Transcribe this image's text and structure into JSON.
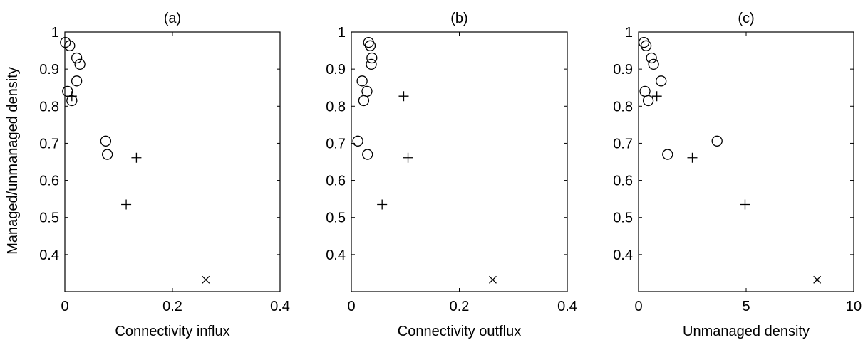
{
  "figure": {
    "ylabel": "Managed/unmanaged density",
    "marker_color": "#000000"
  },
  "chart_data": [
    {
      "type": "scatter",
      "title": "(a)",
      "xlabel": "Connectivity influx",
      "xlim": [
        0,
        0.4
      ],
      "ylim": [
        0.3,
        1.0
      ],
      "xticks": [
        0,
        0.2,
        0.4
      ],
      "xtick_labels": [
        "0",
        "0.2",
        "0.4"
      ],
      "yticks": [
        0.4,
        0.5,
        0.6,
        0.7,
        0.8,
        0.9,
        1.0
      ],
      "ytick_labels": [
        "0.4",
        "0.5",
        "0.6",
        "0.7",
        "0.8",
        "0.9",
        "1"
      ],
      "series": [
        {
          "marker": "circle",
          "points": [
            [
              0.001,
              0.972
            ],
            [
              0.009,
              0.963
            ],
            [
              0.022,
              0.93
            ],
            [
              0.028,
              0.913
            ],
            [
              0.022,
              0.868
            ],
            [
              0.005,
              0.84
            ],
            [
              0.013,
              0.815
            ],
            [
              0.076,
              0.706
            ],
            [
              0.079,
              0.67
            ]
          ]
        },
        {
          "marker": "plus",
          "points": [
            [
              0.013,
              0.827
            ],
            [
              0.133,
              0.661
            ],
            [
              0.114,
              0.535
            ]
          ]
        },
        {
          "marker": "x",
          "points": [
            [
              0.262,
              0.332
            ]
          ]
        }
      ]
    },
    {
      "type": "scatter",
      "title": "(b)",
      "xlabel": "Connectivity outflux",
      "xlim": [
        0,
        0.4
      ],
      "ylim": [
        0.3,
        1.0
      ],
      "xticks": [
        0,
        0.2,
        0.4
      ],
      "xtick_labels": [
        "0",
        "0.2",
        "0.4"
      ],
      "yticks": [
        0.4,
        0.5,
        0.6,
        0.7,
        0.8,
        0.9,
        1.0
      ],
      "ytick_labels": [
        "0.4",
        "0.5",
        "0.6",
        "0.7",
        "0.8",
        "0.9",
        "1"
      ],
      "series": [
        {
          "marker": "circle",
          "points": [
            [
              0.032,
              0.972
            ],
            [
              0.035,
              0.963
            ],
            [
              0.038,
              0.93
            ],
            [
              0.037,
              0.913
            ],
            [
              0.02,
              0.868
            ],
            [
              0.029,
              0.84
            ],
            [
              0.023,
              0.815
            ],
            [
              0.012,
              0.706
            ],
            [
              0.03,
              0.67
            ]
          ]
        },
        {
          "marker": "plus",
          "points": [
            [
              0.097,
              0.827
            ],
            [
              0.105,
              0.661
            ],
            [
              0.057,
              0.535
            ]
          ]
        },
        {
          "marker": "x",
          "points": [
            [
              0.262,
              0.332
            ]
          ]
        }
      ]
    },
    {
      "type": "scatter",
      "title": "(c)",
      "xlabel": "Unmanaged density",
      "xlim": [
        0,
        10
      ],
      "ylim": [
        0.3,
        1.0
      ],
      "xticks": [
        0,
        5,
        10
      ],
      "xtick_labels": [
        "0",
        "5",
        "10"
      ],
      "yticks": [
        0.4,
        0.5,
        0.6,
        0.7,
        0.8,
        0.9,
        1.0
      ],
      "ytick_labels": [
        "0.4",
        "0.5",
        "0.6",
        "0.7",
        "0.8",
        "0.9",
        "1"
      ],
      "series": [
        {
          "marker": "circle",
          "points": [
            [
              0.25,
              0.972
            ],
            [
              0.35,
              0.963
            ],
            [
              0.6,
              0.93
            ],
            [
              0.7,
              0.913
            ],
            [
              1.05,
              0.868
            ],
            [
              0.3,
              0.84
            ],
            [
              0.45,
              0.815
            ],
            [
              3.65,
              0.706
            ],
            [
              1.35,
              0.67
            ]
          ]
        },
        {
          "marker": "plus",
          "points": [
            [
              0.85,
              0.827
            ],
            [
              2.5,
              0.661
            ],
            [
              4.95,
              0.535
            ]
          ]
        },
        {
          "marker": "x",
          "points": [
            [
              8.3,
              0.332
            ]
          ]
        }
      ]
    }
  ]
}
